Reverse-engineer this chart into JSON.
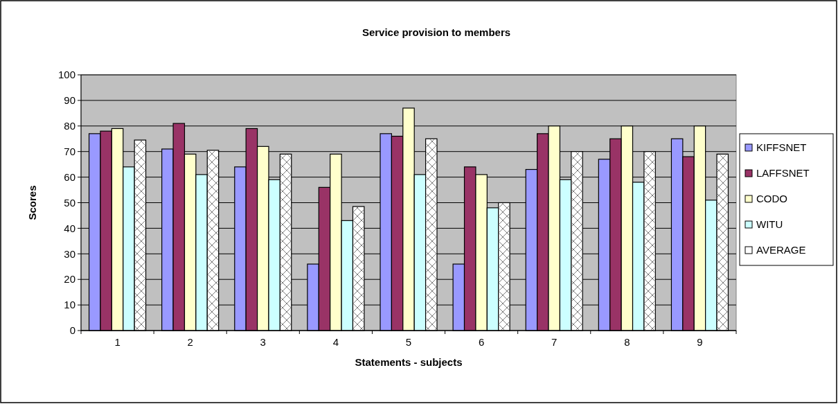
{
  "chart_data": {
    "type": "bar",
    "title": "Service provision to members",
    "xlabel": "Statements - subjects",
    "ylabel": "Scores",
    "categories": [
      "1",
      "2",
      "3",
      "4",
      "5",
      "6",
      "7",
      "8",
      "9"
    ],
    "series": [
      {
        "name": "KIFFSNET",
        "color": "#9999ff",
        "values": [
          77,
          71,
          64,
          26,
          77,
          26,
          63,
          67,
          75
        ]
      },
      {
        "name": "LAFFSNET",
        "color": "#993366",
        "values": [
          78,
          81,
          79,
          56,
          76,
          64,
          77,
          75,
          68
        ]
      },
      {
        "name": "CODO",
        "color": "#ffffcc",
        "values": [
          79,
          69,
          72,
          69,
          87,
          61,
          80,
          80,
          80
        ]
      },
      {
        "name": "WITU",
        "color": "#ccffff",
        "values": [
          64,
          61,
          59,
          43,
          61,
          48,
          59,
          58,
          51
        ]
      },
      {
        "name": "AVERAGE",
        "color": "#ffffff",
        "values": [
          74.5,
          70.5,
          69,
          48.5,
          75,
          50,
          70,
          70,
          69
        ]
      }
    ],
    "ylim": [
      0,
      100
    ],
    "yticks": [
      0,
      10,
      20,
      30,
      40,
      50,
      60,
      70,
      80,
      90,
      100
    ],
    "grid": "y",
    "legend": "right"
  }
}
